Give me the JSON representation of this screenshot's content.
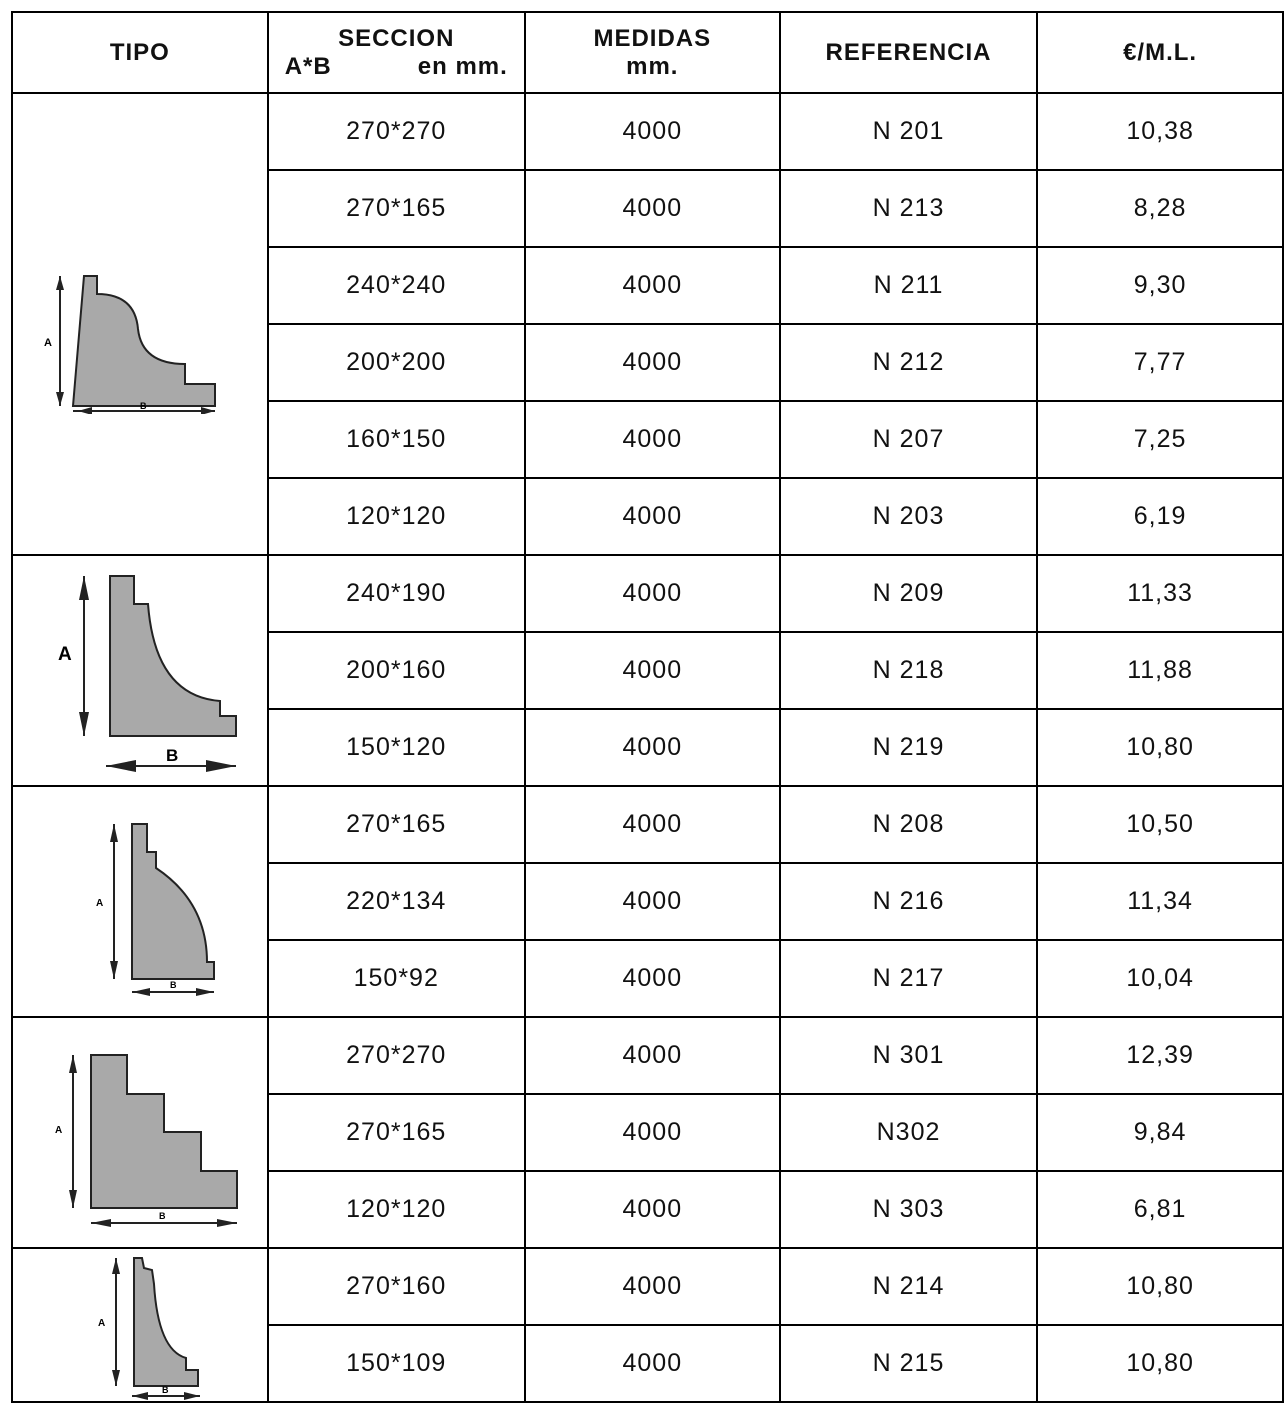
{
  "headers": {
    "tipo": "TIPO",
    "seccion_line1": "SECCION",
    "seccion_line2a": "A*B",
    "seccion_line2b": "en mm.",
    "medidas_line1": "MEDIDAS",
    "medidas_line2": "mm.",
    "referencia": "REFERENCIA",
    "precio": "€/M.L."
  },
  "groups": [
    {
      "profile": "cove-moulding-profile",
      "label_a": "A",
      "label_b": "B",
      "rows": [
        {
          "seccion": "270*270",
          "medidas": "4000",
          "referencia": "N 201",
          "precio": "10,38"
        },
        {
          "seccion": "270*165",
          "medidas": "4000",
          "referencia": "N 213",
          "precio": "8,28"
        },
        {
          "seccion": "240*240",
          "medidas": "4000",
          "referencia": "N 211",
          "precio": "9,30"
        },
        {
          "seccion": "200*200",
          "medidas": "4000",
          "referencia": "N 212",
          "precio": "7,77"
        },
        {
          "seccion": "160*150",
          "medidas": "4000",
          "referencia": "N 207",
          "precio": "7,25"
        },
        {
          "seccion": "120*120",
          "medidas": "4000",
          "referencia": "N 203",
          "precio": "6,19"
        }
      ]
    },
    {
      "profile": "concave-moulding-profile",
      "label_a": "A",
      "label_b": "B",
      "rows": [
        {
          "seccion": "240*190",
          "medidas": "4000",
          "referencia": "N 209",
          "precio": "11,33"
        },
        {
          "seccion": "200*160",
          "medidas": "4000",
          "referencia": "N 218",
          "precio": "11,88"
        },
        {
          "seccion": "150*120",
          "medidas": "4000",
          "referencia": "N 219",
          "precio": "10,80"
        }
      ]
    },
    {
      "profile": "convex-moulding-profile",
      "label_a": "A",
      "label_b": "B",
      "rows": [
        {
          "seccion": "270*165",
          "medidas": "4000",
          "referencia": "N 208",
          "precio": "10,50"
        },
        {
          "seccion": "220*134",
          "medidas": "4000",
          "referencia": "N 216",
          "precio": "11,34"
        },
        {
          "seccion": "150*92",
          "medidas": "4000",
          "referencia": "N 217",
          "precio": "10,04"
        }
      ]
    },
    {
      "profile": "stepped-moulding-profile",
      "label_a": "A",
      "label_b": "B",
      "rows": [
        {
          "seccion": "270*270",
          "medidas": "4000",
          "referencia": "N 301",
          "precio": "12,39"
        },
        {
          "seccion": "270*165",
          "medidas": "4000",
          "referencia": "N302",
          "precio": "9,84"
        },
        {
          "seccion": "120*120",
          "medidas": "4000",
          "referencia": "N 303",
          "precio": "6,81"
        }
      ]
    },
    {
      "profile": "ogee-moulding-profile",
      "label_a": "A",
      "label_b": "B",
      "rows": [
        {
          "seccion": "270*160",
          "medidas": "4000",
          "referencia": "N 214",
          "precio": "10,80"
        },
        {
          "seccion": "150*109",
          "medidas": "4000",
          "referencia": "N 215",
          "precio": "10,80"
        }
      ]
    }
  ],
  "colors": {
    "profile_fill": "#a9a9a9",
    "border": "#000000"
  }
}
